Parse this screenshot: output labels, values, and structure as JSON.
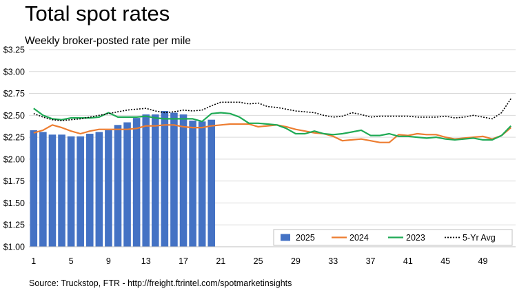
{
  "chart_data": {
    "type": "bar",
    "title": "Total spot rates",
    "subtitle": "Weekly broker-posted rate per mile",
    "xlabel": "",
    "ylabel": "",
    "ylim": [
      1.0,
      3.25
    ],
    "x_ticks": [
      "1",
      "5",
      "9",
      "13",
      "17",
      "21",
      "25",
      "29",
      "33",
      "37",
      "41",
      "45",
      "49"
    ],
    "y_ticks": [
      "$1.00",
      "$1.25",
      "$1.50",
      "$1.75",
      "$2.00",
      "$2.25",
      "$2.50",
      "$2.75",
      "$3.00",
      "$3.25"
    ],
    "weeks": [
      1,
      2,
      3,
      4,
      5,
      6,
      7,
      8,
      9,
      10,
      11,
      12,
      13,
      14,
      15,
      16,
      17,
      18,
      19,
      20,
      21,
      22,
      23,
      24,
      25,
      26,
      27,
      28,
      29,
      30,
      31,
      32,
      33,
      34,
      35,
      36,
      37,
      38,
      39,
      40,
      41,
      42,
      43,
      44,
      45,
      46,
      47,
      48,
      49,
      50,
      51,
      52
    ],
    "grid": true,
    "legend_position": "bottom-right",
    "series": [
      {
        "name": "2025",
        "type": "bar",
        "color": "#4472C4",
        "values": [
          2.33,
          2.31,
          2.28,
          2.28,
          2.26,
          2.26,
          2.29,
          2.31,
          2.33,
          2.39,
          2.42,
          2.47,
          2.51,
          2.51,
          2.55,
          2.53,
          2.51,
          2.44,
          2.43,
          2.45
        ]
      },
      {
        "name": "2024",
        "type": "line",
        "color": "#ED7D31",
        "dash": "",
        "values": [
          2.3,
          2.33,
          2.39,
          2.36,
          2.32,
          2.29,
          2.32,
          2.34,
          2.34,
          2.34,
          2.34,
          2.35,
          2.38,
          2.38,
          2.39,
          2.39,
          2.37,
          2.36,
          2.36,
          2.38,
          2.39,
          2.4,
          2.4,
          2.4,
          2.37,
          2.38,
          2.39,
          2.37,
          2.34,
          2.32,
          2.3,
          2.29,
          2.26,
          2.21,
          2.22,
          2.23,
          2.21,
          2.19,
          2.19,
          2.28,
          2.27,
          2.29,
          2.28,
          2.28,
          2.25,
          2.23,
          2.24,
          2.25,
          2.26,
          2.23,
          2.27,
          2.36
        ]
      },
      {
        "name": "2023",
        "type": "line",
        "color": "#1FAA55",
        "dash": "",
        "values": [
          2.58,
          2.5,
          2.46,
          2.45,
          2.47,
          2.47,
          2.47,
          2.48,
          2.53,
          2.48,
          2.48,
          2.48,
          2.49,
          2.47,
          2.46,
          2.46,
          2.46,
          2.46,
          2.43,
          2.52,
          2.53,
          2.52,
          2.48,
          2.41,
          2.41,
          2.4,
          2.39,
          2.35,
          2.29,
          2.29,
          2.32,
          2.29,
          2.28,
          2.29,
          2.31,
          2.33,
          2.27,
          2.27,
          2.29,
          2.26,
          2.26,
          2.25,
          2.24,
          2.25,
          2.23,
          2.22,
          2.23,
          2.24,
          2.22,
          2.22,
          2.27,
          2.38
        ]
      },
      {
        "name": "5-Yr Avg",
        "type": "line",
        "color": "#000000",
        "dash": "2,2",
        "values": [
          2.52,
          2.48,
          2.45,
          2.44,
          2.45,
          2.46,
          2.48,
          2.5,
          2.52,
          2.54,
          2.56,
          2.57,
          2.58,
          2.55,
          2.53,
          2.54,
          2.56,
          2.55,
          2.56,
          2.61,
          2.65,
          2.65,
          2.65,
          2.63,
          2.64,
          2.6,
          2.59,
          2.57,
          2.55,
          2.54,
          2.53,
          2.5,
          2.48,
          2.49,
          2.53,
          2.51,
          2.48,
          2.49,
          2.49,
          2.49,
          2.49,
          2.48,
          2.48,
          2.48,
          2.49,
          2.47,
          2.48,
          2.5,
          2.48,
          2.46,
          2.53,
          2.69
        ]
      }
    ]
  },
  "source": "Source: Truckstop, FTR - http://freight.ftrintel.com/spotmarketinsights"
}
